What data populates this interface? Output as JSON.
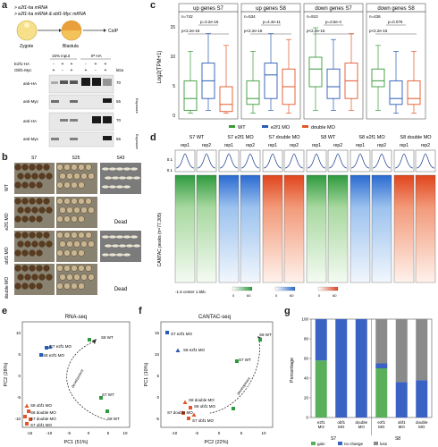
{
  "panels": {
    "a": "a",
    "b": "b",
    "c": "c",
    "d": "d",
    "e": "e",
    "f": "f",
    "g": "g"
  },
  "panel_a": {
    "injections": [
      "> e2f1-ha mRNA",
      "> e2f1-ha mRNA & obf1-Myc mRNA"
    ],
    "stages": [
      "Zygote",
      "Blastula",
      "CoIP"
    ],
    "col_headers": [
      "15% input",
      "IP HA"
    ],
    "row_labels": [
      "E2f1-HA",
      "Obf1-Myc"
    ],
    "signs_e2f1": [
      "-",
      "+",
      "+",
      "-",
      "+",
      "+"
    ],
    "signs_obf1": [
      "+",
      "-",
      "+",
      "+",
      "-",
      "+"
    ],
    "kda": "kDa",
    "blot_labels": [
      "anti-HA",
      "anti-Myc",
      "anti-HA",
      "anti-Myc"
    ],
    "kda_values": [
      "70",
      "55",
      "70",
      "55"
    ],
    "side_labels": [
      "Exposure",
      "Exposure"
    ]
  },
  "panel_b": {
    "stages": [
      "S7",
      "S25",
      "S43"
    ],
    "rows": [
      "WT",
      "e2f1 MO",
      "obf1 MO",
      "double MO"
    ],
    "dead": "Dead"
  },
  "panel_c": {
    "ylabel": "Log2(TPM+1)",
    "yticks": [
      "0",
      "5",
      "10",
      "15"
    ],
    "facets": [
      {
        "title": "up genes S7",
        "n": "n=742",
        "p1": "p=3.2e-16",
        "p2": "p<2.2e-16"
      },
      {
        "title": "up genes S8",
        "n": "n=534",
        "p1": "p=4.4e-11",
        "p2": "p<2.2e-16"
      },
      {
        "title": "down genes S7",
        "n": "n=910",
        "p1": "p=3.5e-4",
        "p2": "p<2.2e-16"
      },
      {
        "title": "down genes S8",
        "n": "n=436",
        "p1": "p=0.076",
        "p2": "p<2.2e-16"
      }
    ],
    "legend": [
      "WT",
      "e2f1 MO",
      "double MO"
    ],
    "colors": [
      "#3a9a3a",
      "#2a5bb5",
      "#e2572a"
    ]
  },
  "panel_d": {
    "groups": [
      "S7 WT",
      "S7 e2f1 MO",
      "S7 double MO",
      "S8 WT",
      "S8 e2f1 MO",
      "S8 double MO"
    ],
    "reps": [
      "rep1",
      "rep2"
    ],
    "yticks": [
      "0.1",
      "0.1"
    ],
    "ylabel": "CANTAC peaks (n=77,305)",
    "xaxis": "-1.5 center 1.5kb",
    "scale_values": [
      "0",
      "60",
      "0",
      "60",
      "0",
      "60"
    ]
  },
  "panel_e": {
    "title": "RNA-seq",
    "xlabel": "PC1 (51%)",
    "ylabel": "PC2 (28%)",
    "xticks": [
      "-15",
      "-10",
      "-5",
      "0",
      "5",
      "10"
    ],
    "yticks": [
      "-10",
      "-5",
      "0",
      "5",
      "10"
    ],
    "labels": [
      "S7 e2f1 MO",
      "S8 e2f1 MO",
      "S8 WT",
      "S7 WT",
      "S8 obf1 MO",
      "S8 double MO",
      "S7 double MO",
      "S7 obf1 MO",
      "S8 WT"
    ],
    "arrow_label": "development"
  },
  "panel_f": {
    "title": "CANTAC-seq",
    "xlabel": "PC2 (22%)",
    "ylabel": "PC1 (10%)",
    "xticks": [
      "-10",
      "-5",
      "0",
      "5",
      "10"
    ],
    "yticks": [
      "-5",
      "0",
      "5",
      "10",
      "15"
    ],
    "labels": [
      "S7 e2f1 MO",
      "S8 e2f1 MO",
      "S8 WT",
      "S7 WT",
      "S8 double MO",
      "S8 obf1 MO",
      "S7 double MO",
      "S7 obf1 MO"
    ],
    "arrow_label": "development"
  },
  "panel_g": {
    "ylabel": "Percentage",
    "yticks": [
      "0",
      "20",
      "40",
      "60",
      "80",
      "100"
    ],
    "categories": [
      "e2f1 MO",
      "obf1 MO",
      "double MO",
      "e2f1 MO",
      "obf1 MO",
      "double MO"
    ],
    "stage_labels": [
      "S7",
      "S8"
    ],
    "legend": [
      "gain",
      "no change",
      "loss"
    ],
    "colors": [
      "#5ab05a",
      "#3a62c4",
      "#8a8a8a"
    ]
  },
  "chart_data": [
    {
      "type": "bar",
      "panel": "g",
      "categories": [
        "e2f1 MO",
        "obf1 MO",
        "double MO",
        "e2f1 MO",
        "obf1 MO",
        "double MO"
      ],
      "series": [
        {
          "name": "gain",
          "values": [
            58,
            0,
            0,
            50,
            0,
            0
          ]
        },
        {
          "name": "no change",
          "values": [
            42,
            100,
            100,
            5,
            36,
            38
          ]
        },
        {
          "name": "loss",
          "values": [
            0,
            0,
            0,
            45,
            64,
            62
          ]
        }
      ],
      "ylabel": "Percentage",
      "ylim": [
        0,
        100
      ]
    },
    {
      "type": "scatter",
      "panel": "e",
      "series": [
        {
          "name": "WT",
          "points": [
            [
              10,
              4
            ],
            [
              7.5,
              -10
            ],
            [
              2,
              -5.5
            ]
          ]
        },
        {
          "name": "e2f1 MO",
          "points": [
            [
              -10,
              2
            ],
            [
              -9,
              1
            ]
          ]
        },
        {
          "name": "obf1 MO",
          "points": [
            [
              -13,
              -11
            ],
            [
              -12,
              -8
            ]
          ]
        },
        {
          "name": "double MO",
          "points": [
            [
              -12,
              -10
            ],
            [
              -11.5,
              -9
            ]
          ]
        }
      ],
      "xlabel": "PC1 (51%)",
      "ylabel": "PC2 (28%)"
    }
  ]
}
